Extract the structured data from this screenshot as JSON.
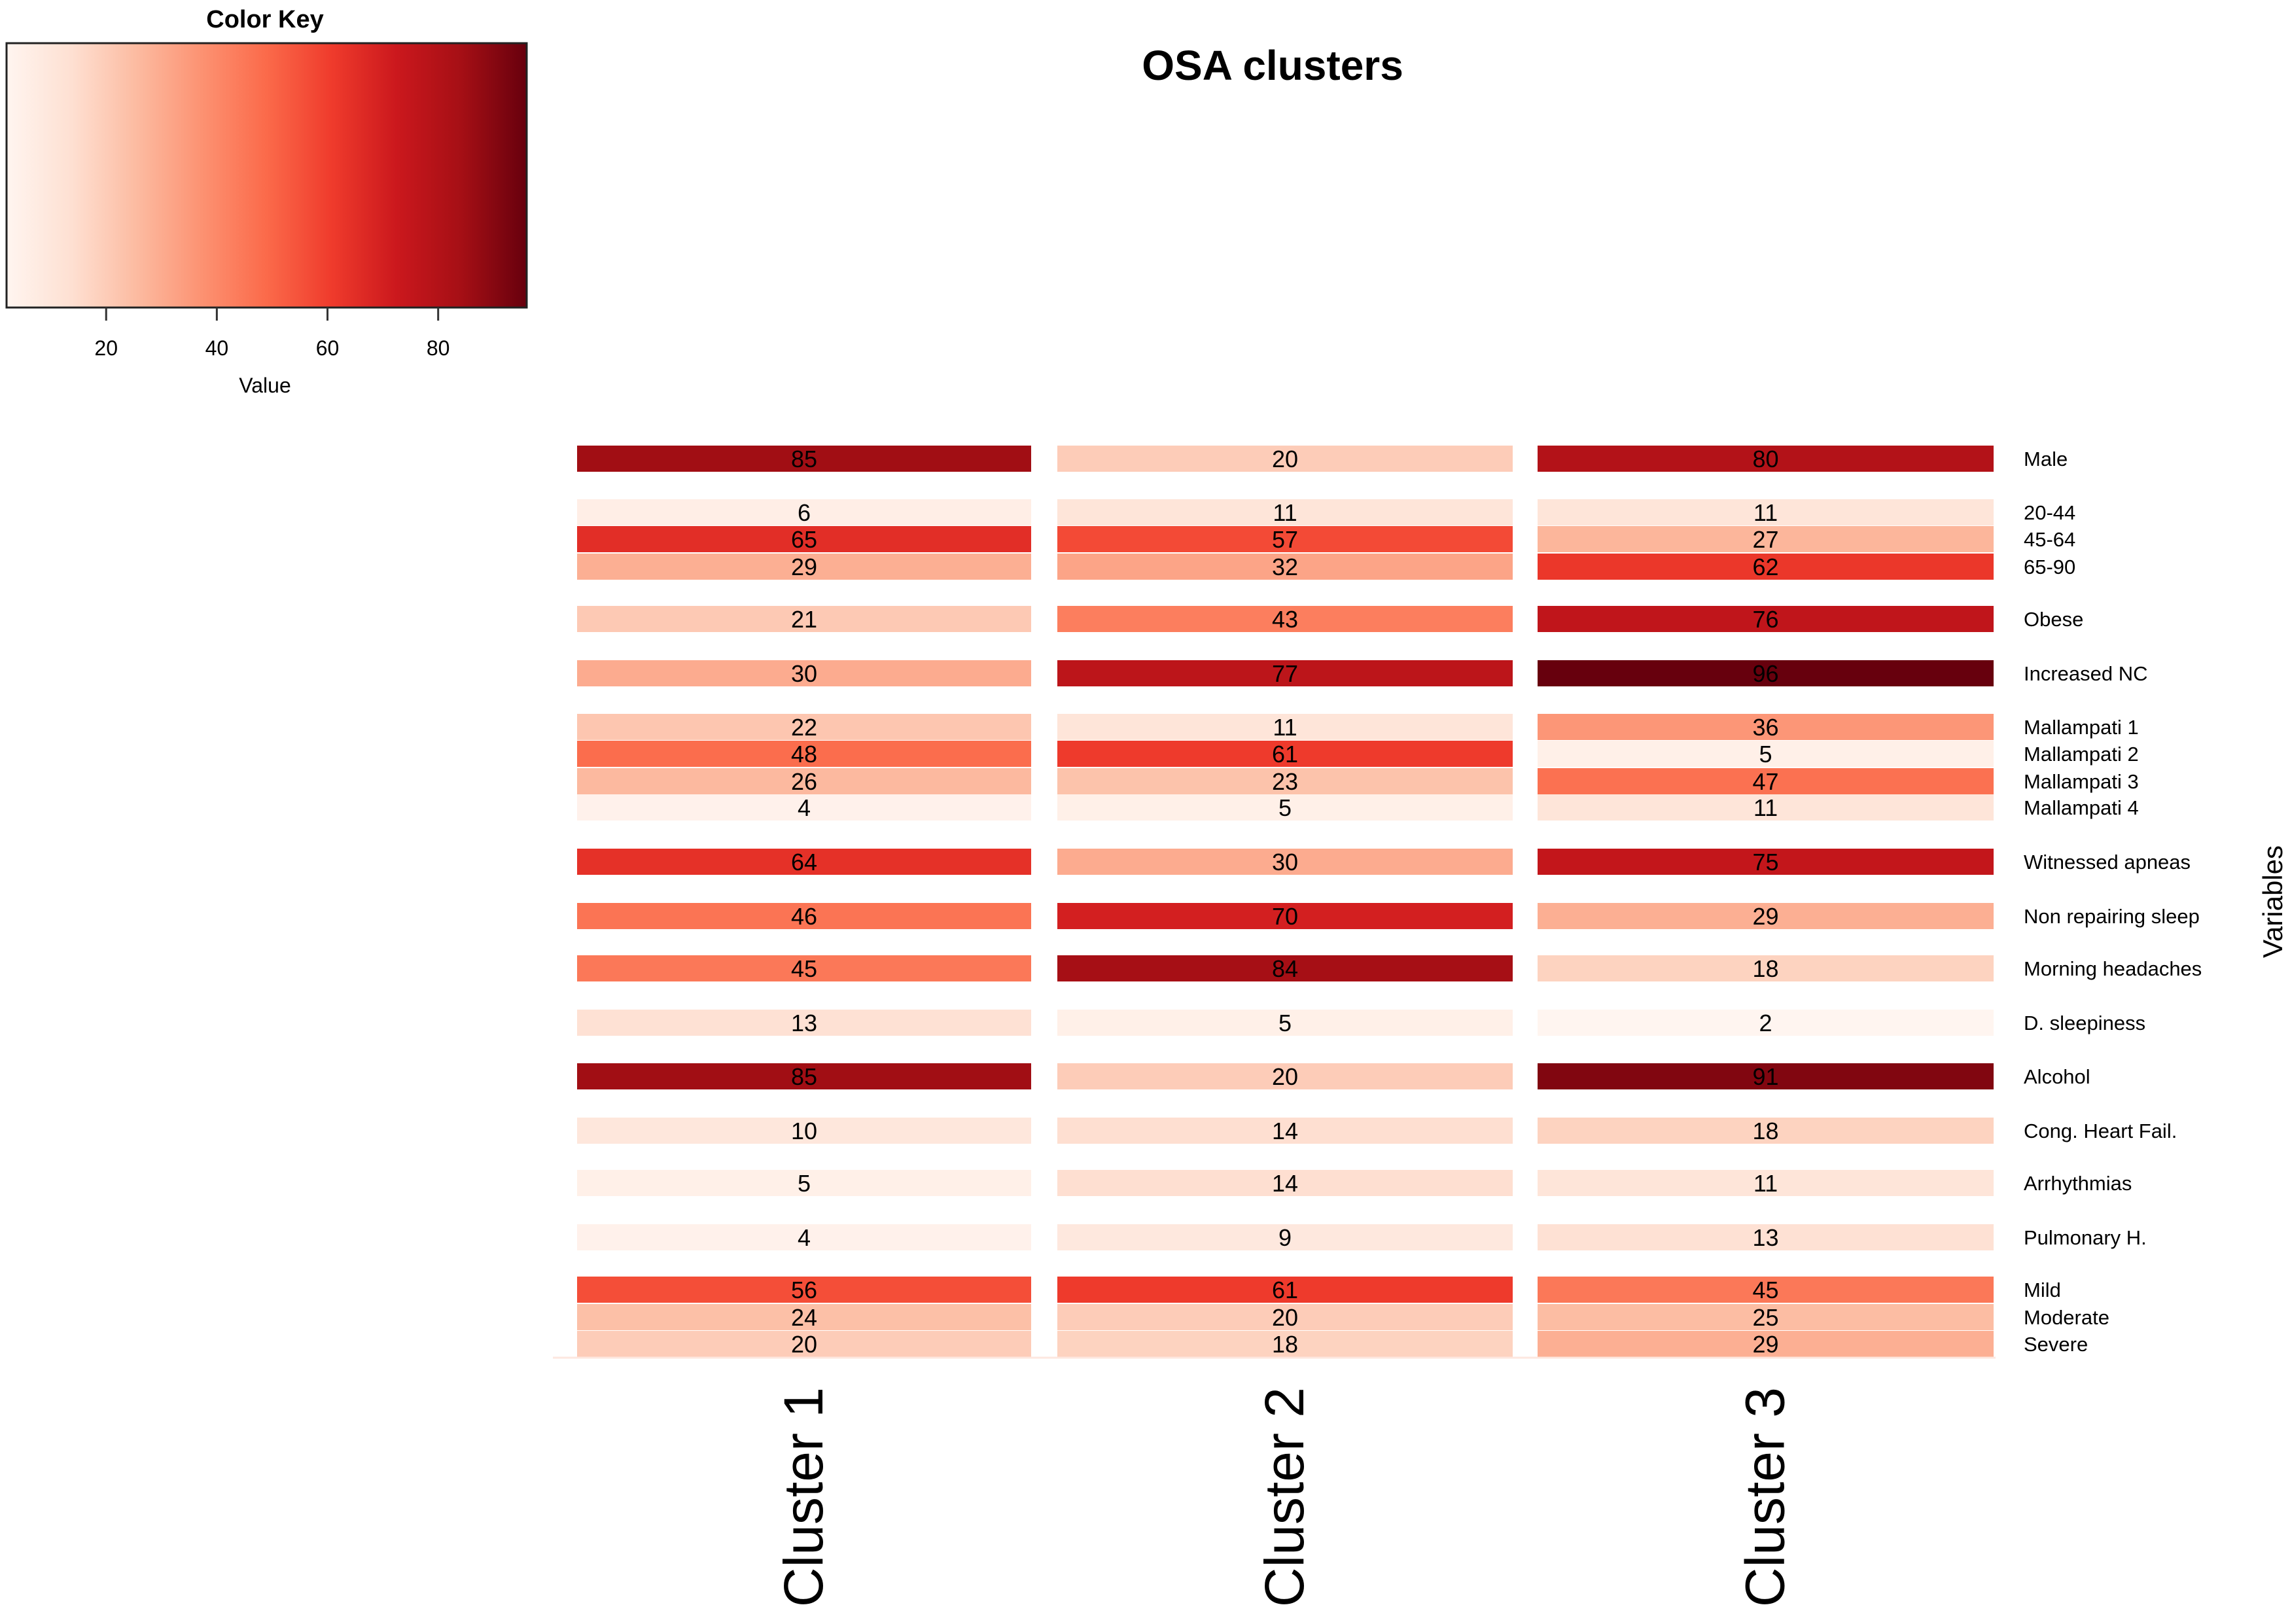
{
  "chart_data": {
    "type": "heatmap",
    "title": "OSA clusters",
    "xlabel": "",
    "ylabel": "Variables",
    "columns": [
      "Cluster 1",
      "Cluster 2",
      "Cluster 3"
    ],
    "rows": [
      {
        "label": "Male",
        "values": [
          85,
          20,
          80
        ]
      },
      {
        "label": "20-44",
        "values": [
          6,
          11,
          11
        ]
      },
      {
        "label": "45-64",
        "values": [
          65,
          57,
          27
        ]
      },
      {
        "label": "65-90",
        "values": [
          29,
          32,
          62
        ]
      },
      {
        "label": "Obese",
        "values": [
          21,
          43,
          76
        ]
      },
      {
        "label": "Increased NC",
        "values": [
          30,
          77,
          96
        ]
      },
      {
        "label": "Mallampati 1",
        "values": [
          22,
          11,
          36
        ]
      },
      {
        "label": "Mallampati 2",
        "values": [
          48,
          61,
          5
        ]
      },
      {
        "label": "Mallampati 3",
        "values": [
          26,
          23,
          47
        ]
      },
      {
        "label": "Mallampati 4",
        "values": [
          4,
          5,
          11
        ]
      },
      {
        "label": "Witnessed apneas",
        "values": [
          64,
          30,
          75
        ]
      },
      {
        "label": "Non repairing sleep",
        "values": [
          46,
          70,
          29
        ]
      },
      {
        "label": "Morning headaches",
        "values": [
          45,
          84,
          18
        ]
      },
      {
        "label": "D. sleepiness",
        "values": [
          13,
          5,
          2
        ]
      },
      {
        "label": "Alcohol",
        "values": [
          85,
          20,
          91
        ]
      },
      {
        "label": "Cong. Heart Fail.",
        "values": [
          10,
          14,
          18
        ]
      },
      {
        "label": "Arrhythmias",
        "values": [
          5,
          14,
          11
        ]
      },
      {
        "label": "Pulmonary H.",
        "values": [
          4,
          9,
          13
        ]
      },
      {
        "label": "Mild",
        "values": [
          56,
          61,
          45
        ]
      },
      {
        "label": "Moderate",
        "values": [
          24,
          20,
          25
        ]
      },
      {
        "label": "Severe",
        "values": [
          20,
          18,
          29
        ]
      }
    ],
    "row_groups": [
      [
        0
      ],
      [
        1,
        2,
        3
      ],
      [
        4
      ],
      [
        5
      ],
      [
        6,
        7,
        8,
        9
      ],
      [
        10
      ],
      [
        11
      ],
      [
        12
      ],
      [
        13
      ],
      [
        14
      ],
      [
        15
      ],
      [
        16
      ],
      [
        17
      ],
      [
        18,
        19,
        20
      ]
    ],
    "color_key": {
      "title": "Color Key",
      "xlabel": "Value",
      "ticks": [
        20,
        40,
        60,
        80
      ],
      "range": [
        2,
        96
      ],
      "colors": [
        "#fff5f0",
        "#fee0d2",
        "#fcbba1",
        "#fc9272",
        "#fb6a4a",
        "#ef3b2c",
        "#cb181d",
        "#a50f15",
        "#67000d"
      ]
    }
  }
}
